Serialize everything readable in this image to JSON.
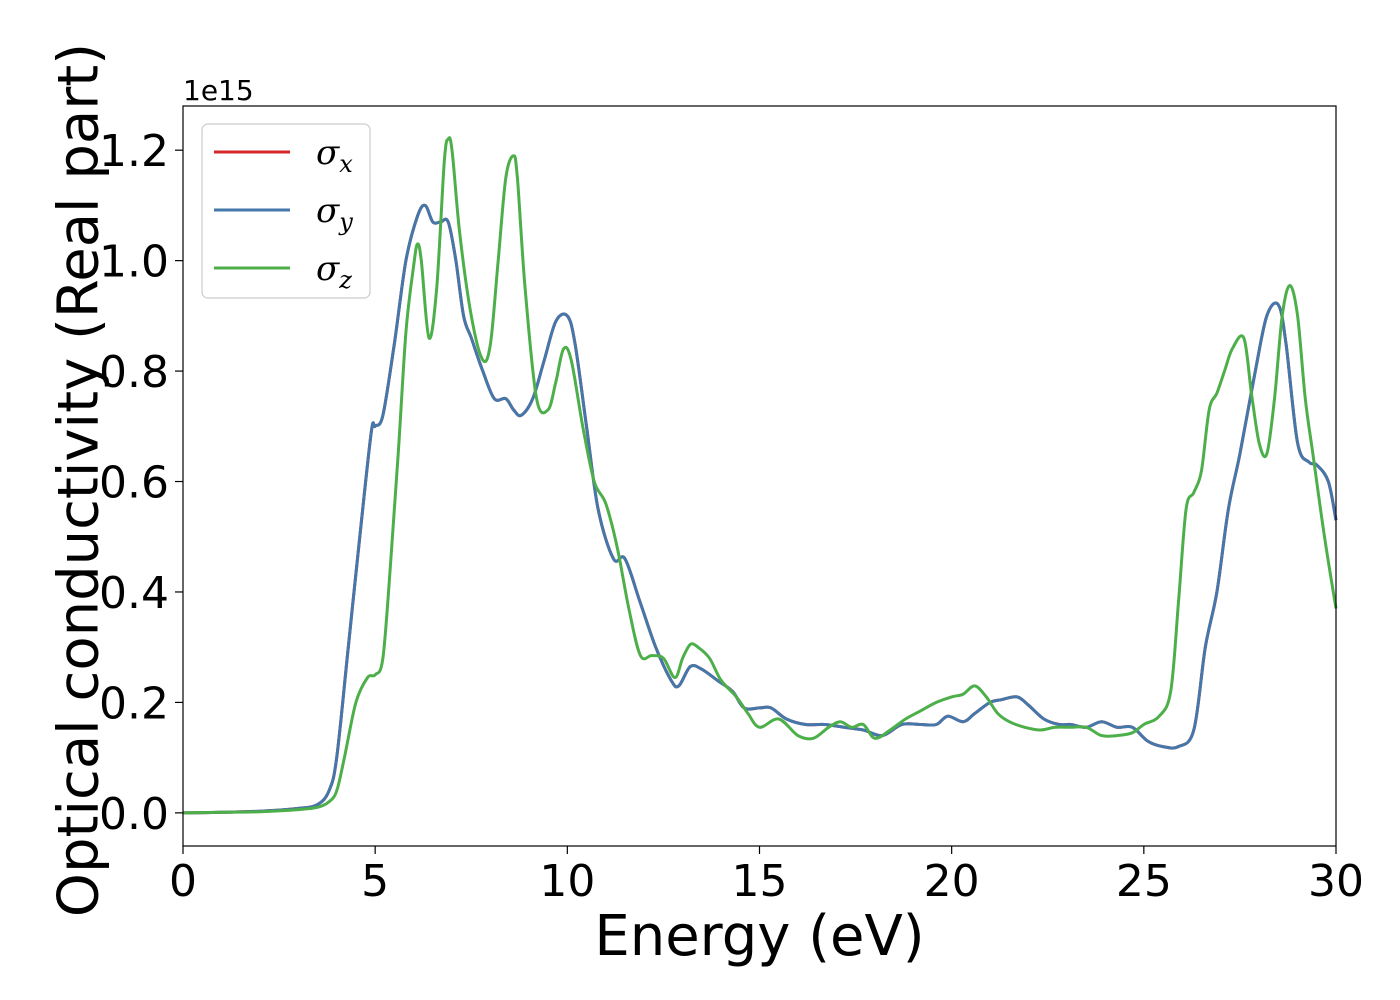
{
  "chart_data": {
    "type": "line",
    "xlabel": "Energy (eV)",
    "ylabel": "Optical conductivity (Real part)",
    "y_offset_label": "1e15",
    "xlim": [
      0,
      30
    ],
    "ylim": [
      -0.06,
      1.28
    ],
    "xticks": [
      0,
      5,
      10,
      15,
      20,
      25,
      30
    ],
    "yticks": [
      0.0,
      0.2,
      0.4,
      0.6,
      0.8,
      1.0,
      1.2
    ],
    "xtick_labels": [
      "0",
      "5",
      "10",
      "15",
      "20",
      "25",
      "30"
    ],
    "ytick_labels": [
      "0.0",
      "0.2",
      "0.4",
      "0.6",
      "0.8",
      "1.0",
      "1.2"
    ],
    "grid": false,
    "legend_position": "top-left",
    "series": [
      {
        "name": "σ",
        "sub": "x",
        "color": "#d62728",
        "x": [
          0,
          1,
          2,
          3,
          3.5,
          3.8,
          4.0,
          4.3,
          4.6,
          4.9,
          5.0,
          5.2,
          5.5,
          5.8,
          6.1,
          6.3,
          6.5,
          6.7,
          6.9,
          7.1,
          7.3,
          7.5,
          7.8,
          8.1,
          8.4,
          8.6,
          8.8,
          9.1,
          9.4,
          9.7,
          10.0,
          10.2,
          10.5,
          10.8,
          11.2,
          11.5,
          11.9,
          12.3,
          12.7,
          12.9,
          13.2,
          13.5,
          13.9,
          14.3,
          14.6,
          15.0,
          15.3,
          15.7,
          16.2,
          16.7,
          17.2,
          17.7,
          18.2,
          18.7,
          19.2,
          19.6,
          19.9,
          20.3,
          20.6,
          21.0,
          21.3,
          21.7,
          22.0,
          22.4,
          22.8,
          23.1,
          23.5,
          23.9,
          24.3,
          24.7,
          25.1,
          25.5,
          25.9,
          26.3,
          26.6,
          26.9,
          27.2,
          27.5,
          27.9,
          28.2,
          28.5,
          28.7,
          29.0,
          29.3,
          29.5,
          29.8,
          30.0
        ],
        "y": [
          0.0,
          0.001,
          0.003,
          0.008,
          0.015,
          0.04,
          0.1,
          0.3,
          0.5,
          0.69,
          0.7,
          0.72,
          0.85,
          1.0,
          1.08,
          1.1,
          1.07,
          1.07,
          1.07,
          1.0,
          0.9,
          0.86,
          0.8,
          0.75,
          0.75,
          0.73,
          0.72,
          0.75,
          0.82,
          0.89,
          0.9,
          0.85,
          0.7,
          0.55,
          0.46,
          0.46,
          0.38,
          0.3,
          0.24,
          0.23,
          0.265,
          0.26,
          0.24,
          0.22,
          0.19,
          0.19,
          0.19,
          0.17,
          0.16,
          0.16,
          0.155,
          0.15,
          0.14,
          0.16,
          0.16,
          0.16,
          0.175,
          0.165,
          0.18,
          0.2,
          0.205,
          0.21,
          0.195,
          0.17,
          0.16,
          0.16,
          0.155,
          0.165,
          0.155,
          0.155,
          0.13,
          0.12,
          0.12,
          0.15,
          0.3,
          0.4,
          0.55,
          0.65,
          0.8,
          0.9,
          0.92,
          0.85,
          0.67,
          0.635,
          0.63,
          0.6,
          0.53
        ]
      },
      {
        "name": "σ",
        "sub": "y",
        "color": "#4477aa",
        "x": [
          0,
          1,
          2,
          3,
          3.5,
          3.8,
          4.0,
          4.3,
          4.6,
          4.9,
          5.0,
          5.2,
          5.5,
          5.8,
          6.1,
          6.3,
          6.5,
          6.7,
          6.9,
          7.1,
          7.3,
          7.5,
          7.8,
          8.1,
          8.4,
          8.6,
          8.8,
          9.1,
          9.4,
          9.7,
          10.0,
          10.2,
          10.5,
          10.8,
          11.2,
          11.5,
          11.9,
          12.3,
          12.7,
          12.9,
          13.2,
          13.5,
          13.9,
          14.3,
          14.6,
          15.0,
          15.3,
          15.7,
          16.2,
          16.7,
          17.2,
          17.7,
          18.2,
          18.7,
          19.2,
          19.6,
          19.9,
          20.3,
          20.6,
          21.0,
          21.3,
          21.7,
          22.0,
          22.4,
          22.8,
          23.1,
          23.5,
          23.9,
          24.3,
          24.7,
          25.1,
          25.5,
          25.9,
          26.3,
          26.6,
          26.9,
          27.2,
          27.5,
          27.9,
          28.2,
          28.5,
          28.7,
          29.0,
          29.3,
          29.5,
          29.8,
          30.0
        ],
        "y": [
          0.0,
          0.001,
          0.003,
          0.008,
          0.015,
          0.04,
          0.1,
          0.3,
          0.5,
          0.69,
          0.7,
          0.72,
          0.85,
          1.0,
          1.08,
          1.1,
          1.07,
          1.07,
          1.07,
          1.0,
          0.9,
          0.86,
          0.8,
          0.75,
          0.75,
          0.73,
          0.72,
          0.75,
          0.82,
          0.89,
          0.9,
          0.85,
          0.7,
          0.55,
          0.46,
          0.46,
          0.38,
          0.3,
          0.24,
          0.23,
          0.265,
          0.26,
          0.24,
          0.22,
          0.19,
          0.19,
          0.19,
          0.17,
          0.16,
          0.16,
          0.155,
          0.15,
          0.14,
          0.16,
          0.16,
          0.16,
          0.175,
          0.165,
          0.18,
          0.2,
          0.205,
          0.21,
          0.195,
          0.17,
          0.16,
          0.16,
          0.155,
          0.165,
          0.155,
          0.155,
          0.13,
          0.12,
          0.12,
          0.15,
          0.3,
          0.4,
          0.55,
          0.65,
          0.8,
          0.9,
          0.92,
          0.85,
          0.67,
          0.635,
          0.63,
          0.6,
          0.53
        ]
      },
      {
        "name": "σ",
        "sub": "z",
        "color": "#4daf4a",
        "x": [
          0,
          1,
          2,
          3,
          3.5,
          3.8,
          4.0,
          4.2,
          4.5,
          4.8,
          5.0,
          5.2,
          5.4,
          5.6,
          5.8,
          6.0,
          6.1,
          6.2,
          6.4,
          6.6,
          6.8,
          6.9,
          7.0,
          7.2,
          7.5,
          7.8,
          8.0,
          8.2,
          8.4,
          8.6,
          8.7,
          8.9,
          9.2,
          9.5,
          9.7,
          9.9,
          10.1,
          10.4,
          10.7,
          11.0,
          11.3,
          11.6,
          11.9,
          12.2,
          12.5,
          12.8,
          13.0,
          13.2,
          13.4,
          13.7,
          14.0,
          14.4,
          14.7,
          15.0,
          15.5,
          16.0,
          16.4,
          16.8,
          17.1,
          17.4,
          17.7,
          18.0,
          18.4,
          18.8,
          19.2,
          19.6,
          20.0,
          20.3,
          20.6,
          20.9,
          21.2,
          21.5,
          21.9,
          22.3,
          22.7,
          23.1,
          23.5,
          23.9,
          24.3,
          24.7,
          25.0,
          25.4,
          25.7,
          25.9,
          26.1,
          26.3,
          26.5,
          26.7,
          26.9,
          27.1,
          27.3,
          27.6,
          27.8,
          28.0,
          28.2,
          28.4,
          28.6,
          28.8,
          29.0,
          29.2,
          29.4,
          29.7,
          30.0
        ],
        "y": [
          0.0,
          0.001,
          0.002,
          0.006,
          0.01,
          0.02,
          0.04,
          0.1,
          0.2,
          0.245,
          0.25,
          0.28,
          0.45,
          0.65,
          0.87,
          0.99,
          1.03,
          1.0,
          0.86,
          0.95,
          1.18,
          1.22,
          1.2,
          1.05,
          0.9,
          0.82,
          0.85,
          1.0,
          1.15,
          1.19,
          1.15,
          0.95,
          0.75,
          0.73,
          0.78,
          0.84,
          0.82,
          0.7,
          0.6,
          0.56,
          0.48,
          0.37,
          0.285,
          0.285,
          0.28,
          0.245,
          0.28,
          0.305,
          0.3,
          0.28,
          0.24,
          0.21,
          0.18,
          0.155,
          0.17,
          0.14,
          0.135,
          0.155,
          0.165,
          0.155,
          0.16,
          0.135,
          0.15,
          0.17,
          0.185,
          0.2,
          0.21,
          0.215,
          0.23,
          0.21,
          0.18,
          0.165,
          0.155,
          0.15,
          0.155,
          0.155,
          0.155,
          0.14,
          0.14,
          0.145,
          0.16,
          0.175,
          0.22,
          0.38,
          0.55,
          0.58,
          0.62,
          0.73,
          0.76,
          0.8,
          0.84,
          0.86,
          0.76,
          0.67,
          0.65,
          0.75,
          0.9,
          0.955,
          0.9,
          0.75,
          0.65,
          0.5,
          0.37
        ]
      }
    ]
  }
}
